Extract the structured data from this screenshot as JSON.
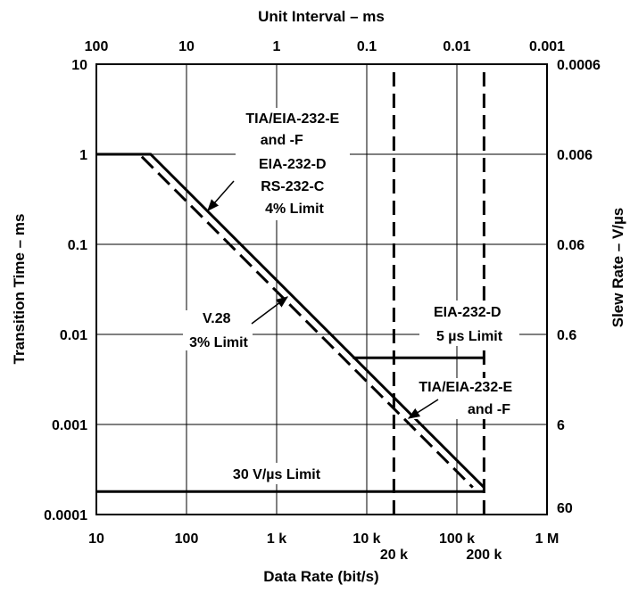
{
  "chart_data": {
    "type": "line",
    "title": "",
    "xlabel": "Data Rate (bit/s)",
    "ylabel": "Transition Time – ms",
    "x2label": "Unit Interval – ms",
    "y2label": "Slew Rate – V/µs",
    "x_scale": "log",
    "y_scale": "log",
    "xlim": [
      10,
      1000000
    ],
    "ylim": [
      0.0001,
      10
    ],
    "grid": true,
    "x_ticks": [
      "10",
      "100",
      "1 k",
      "10 k",
      "100 k",
      "1 M"
    ],
    "x_extra_ticks": [
      "20 k",
      "200 k"
    ],
    "x2_ticks": [
      "100",
      "10",
      "1",
      "0.1",
      "0.01",
      "0.001"
    ],
    "y_ticks": [
      "0.0001",
      "0.001",
      "0.01",
      "0.1",
      "1",
      "10"
    ],
    "y2_ticks": [
      "60",
      "6",
      "0.6",
      "0.06",
      "0.006",
      "0.0006"
    ],
    "series": [
      {
        "style": "solid",
        "x": [
          10,
          40,
          200000
        ],
        "y": [
          1,
          1,
          0.0002
        ]
      },
      {
        "style": "dashed",
        "x": [
          10,
          30,
          150000
        ],
        "y": [
          1,
          1,
          0.0002
        ]
      },
      {
        "style": "solid",
        "x": [
          7000,
          200000
        ],
        "y": [
          0.0055,
          0.0055
        ]
      },
      {
        "style": "solid",
        "x": [
          10,
          200000
        ],
        "y": [
          0.00018,
          0.00018
        ]
      },
      {
        "style": "dashed-vertical",
        "x": [
          20000,
          20000
        ],
        "y": [
          0.0001,
          10
        ]
      },
      {
        "style": "dashed-vertical",
        "x": [
          200000,
          200000
        ],
        "y": [
          0.0001,
          10
        ]
      }
    ],
    "annotations": [
      {
        "lines": [
          "TIA/EIA-232-E",
          "and -F",
          "EIA-232-D",
          "RS-232-C",
          "4% Limit"
        ]
      },
      {
        "lines": [
          "V.28",
          "3% Limit"
        ]
      },
      {
        "lines": [
          "EIA-232-D",
          "5 µs Limit"
        ]
      },
      {
        "lines": [
          "TIA/EIA-232-E",
          "and -F"
        ]
      },
      {
        "lines": [
          "30 V/µs Limit"
        ]
      }
    ]
  }
}
